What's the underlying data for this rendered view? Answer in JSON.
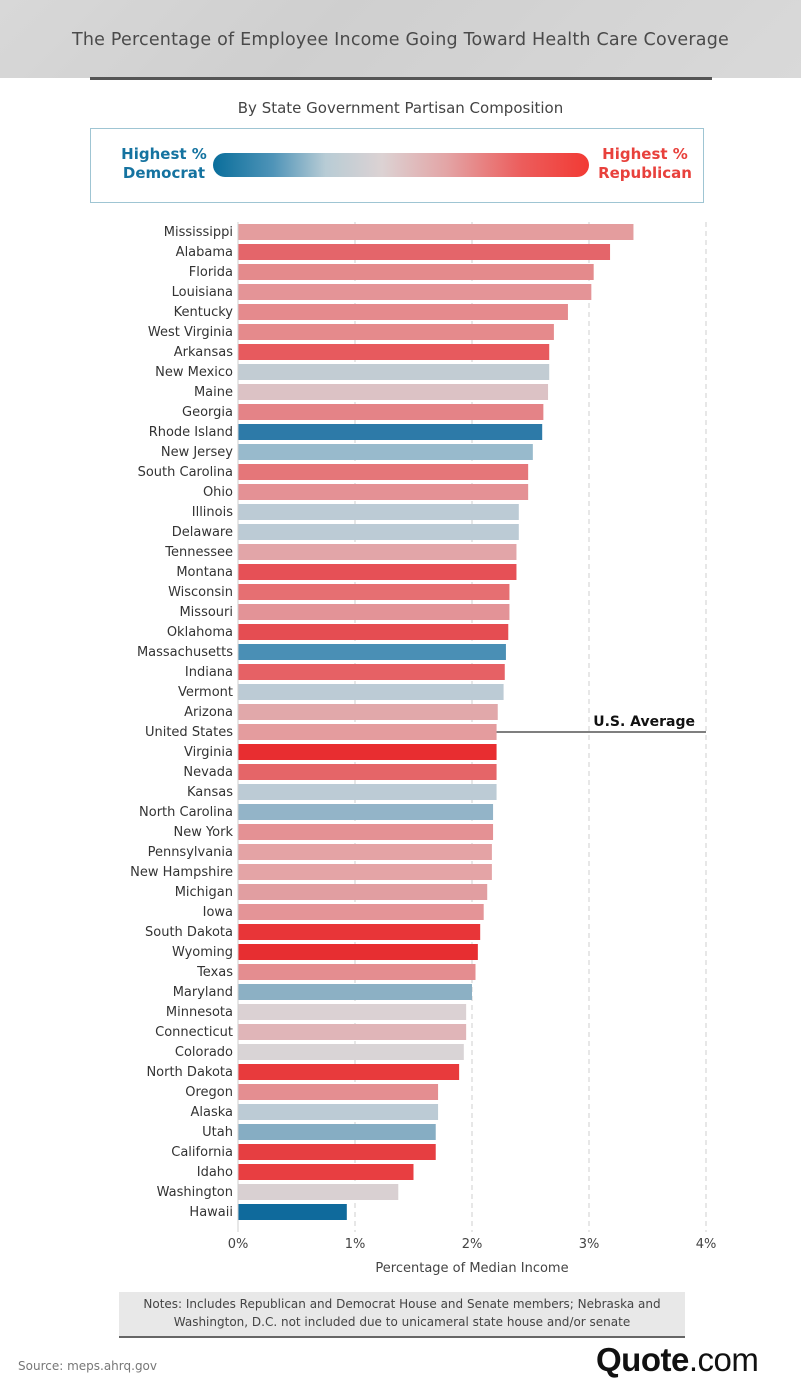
{
  "title": "The Percentage of Employee Income Going Toward Health Care Coverage",
  "subtitle": "By State Government Partisan Composition",
  "legend": {
    "left_label": "Highest % Democrat",
    "right_label": "Highest % Republican",
    "left_color": "#0a6e9b",
    "right_color": "#f23a34"
  },
  "notes": "Notes: Includes Republican and Democrat House and Senate members; Nebraska and Washington, D.C. not included due to unicameral state house and/or senate",
  "source": "Source: meps.ahrq.gov",
  "brand": {
    "name": "Quote",
    "suffix": ".com"
  },
  "chart_data": {
    "type": "bar",
    "orientation": "horizontal",
    "xlabel": "Percentage of Median Income",
    "xlim": [
      0,
      4
    ],
    "xticks": [
      "0%",
      "1%",
      "2%",
      "3%",
      "4%"
    ],
    "grid": true,
    "reference_line": {
      "label": "U.S. Average",
      "category": "United States",
      "value": 2.21
    },
    "categories": [
      "Mississippi",
      "Alabama",
      "Florida",
      "Louisiana",
      "Kentucky",
      "West Virginia",
      "Arkansas",
      "New Mexico",
      "Maine",
      "Georgia",
      "Rhode Island",
      "New Jersey",
      "South Carolina",
      "Ohio",
      "Illinois",
      "Delaware",
      "Tennessee",
      "Montana",
      "Wisconsin",
      "Missouri",
      "Oklahoma",
      "Massachusetts",
      "Indiana",
      "Vermont",
      "Arizona",
      "United States",
      "Virginia",
      "Nevada",
      "Kansas",
      "North Carolina",
      "New York",
      "Pennsylvania",
      "New Hampshire",
      "Michigan",
      "Iowa",
      "South Dakota",
      "Wyoming",
      "Texas",
      "Maryland",
      "Minnesota",
      "Connecticut",
      "Colorado",
      "North Dakota",
      "Oregon",
      "Alaska",
      "Utah",
      "California",
      "Idaho",
      "Washington",
      "Hawaii"
    ],
    "values": [
      3.38,
      3.18,
      3.04,
      3.02,
      2.82,
      2.7,
      2.66,
      2.66,
      2.65,
      2.61,
      2.6,
      2.52,
      2.48,
      2.48,
      2.4,
      2.4,
      2.38,
      2.38,
      2.32,
      2.32,
      2.31,
      2.29,
      2.28,
      2.27,
      2.22,
      2.21,
      2.21,
      2.21,
      2.21,
      2.18,
      2.18,
      2.17,
      2.17,
      2.13,
      2.1,
      2.07,
      2.05,
      2.03,
      2.0,
      1.95,
      1.95,
      1.93,
      1.89,
      1.71,
      1.71,
      1.69,
      1.69,
      1.5,
      1.37,
      0.93
    ],
    "colors": [
      "#e49d9e",
      "#e4656a",
      "#e48a8c",
      "#e49497",
      "#e58a8d",
      "#e58a8c",
      "#e75a5e",
      "#c2ccd3",
      "#dcc2c5",
      "#e48387",
      "#2d7aa8",
      "#98bacc",
      "#e57679",
      "#e49195",
      "#bccbd5",
      "#bccbd5",
      "#e2a5a8",
      "#e65056",
      "#e66f72",
      "#e39397",
      "#e54d52",
      "#4a8fb5",
      "#e66165",
      "#bccbd5",
      "#e1a8aa",
      "#e49c9e",
      "#e82d30",
      "#e56568",
      "#bccbd5",
      "#93b4c8",
      "#e49194",
      "#e4a3a5",
      "#e4a4a6",
      "#e19ea1",
      "#e49497",
      "#e83538",
      "#e72e31",
      "#e48d90",
      "#8cb0c4",
      "#dbd1d3",
      "#e0b5b8",
      "#d9d4d6",
      "#e83a3c",
      "#e48e91",
      "#bccbd5",
      "#86adc3",
      "#e63e41",
      "#e83e41",
      "#d9d0d2",
      "#0f6a9c"
    ]
  }
}
